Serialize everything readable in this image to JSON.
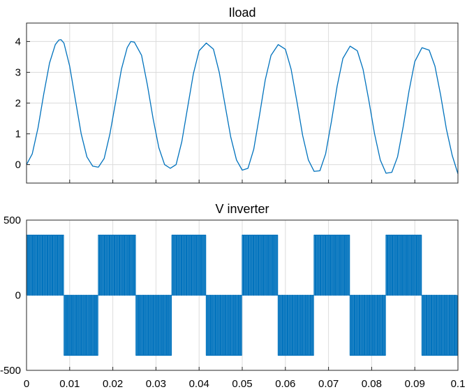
{
  "chart_data": [
    {
      "type": "line",
      "title": "Iload",
      "xlim": [
        0,
        0.1
      ],
      "ylim": [
        -0.6,
        4.6
      ],
      "yticks": [
        0,
        1,
        2,
        3,
        4
      ],
      "xticks": [
        0,
        0.01,
        0.02,
        0.03,
        0.04,
        0.05,
        0.06,
        0.07,
        0.08,
        0.09,
        0.1
      ],
      "grid": true,
      "series": [
        {
          "color": "#0072bd",
          "x": [
            0,
            0.00133,
            0.00267,
            0.004,
            0.00533,
            0.00667,
            0.0075,
            0.008,
            0.00867,
            0.01,
            0.01133,
            0.01267,
            0.014,
            0.01533,
            0.0165,
            0.01667,
            0.018,
            0.01933,
            0.02067,
            0.022,
            0.02333,
            0.02417,
            0.025,
            0.02667,
            0.028,
            0.02933,
            0.03067,
            0.032,
            0.03333,
            0.03467,
            0.036,
            0.03733,
            0.03867,
            0.04,
            0.04167,
            0.04333,
            0.04467,
            0.046,
            0.04733,
            0.04867,
            0.05,
            0.05133,
            0.05267,
            0.054,
            0.05533,
            0.05667,
            0.05833,
            0.06,
            0.06133,
            0.06267,
            0.064,
            0.06533,
            0.06667,
            0.068,
            0.06933,
            0.07067,
            0.072,
            0.07333,
            0.075,
            0.07667,
            0.078,
            0.07933,
            0.08067,
            0.082,
            0.08333,
            0.08467,
            0.086,
            0.08733,
            0.08867,
            0.09,
            0.09167,
            0.09333,
            0.09467,
            0.096,
            0.09733,
            0.09867,
            0.1
          ],
          "y": [
            0,
            0.35,
            1.2,
            2.3,
            3.3,
            3.9,
            4.05,
            4.06,
            3.95,
            3.2,
            2.1,
            1.0,
            0.25,
            -0.05,
            -0.08,
            -0.08,
            0.2,
            1.0,
            2.05,
            3.1,
            3.8,
            4.0,
            3.98,
            3.55,
            2.6,
            1.5,
            0.55,
            0.0,
            -0.12,
            0.0,
            0.75,
            1.85,
            2.95,
            3.7,
            3.95,
            3.75,
            3.0,
            1.95,
            0.9,
            0.15,
            -0.18,
            -0.12,
            0.5,
            1.6,
            2.75,
            3.55,
            3.9,
            3.75,
            3.1,
            2.05,
            0.95,
            0.15,
            -0.22,
            -0.2,
            0.35,
            1.4,
            2.55,
            3.45,
            3.85,
            3.7,
            3.1,
            2.1,
            1.0,
            0.15,
            -0.28,
            -0.25,
            0.25,
            1.25,
            2.4,
            3.35,
            3.8,
            3.72,
            3.2,
            2.25,
            1.15,
            0.3,
            -0.3
          ]
        }
      ]
    },
    {
      "type": "line",
      "title": "V inverter",
      "xlim": [
        0,
        0.1
      ],
      "ylim": [
        -500,
        500
      ],
      "yticks": [
        -500,
        0,
        500
      ],
      "ytick_labels": [
        "-500",
        "0",
        "500"
      ],
      "xticks": [
        0,
        0.01,
        0.02,
        0.03,
        0.04,
        0.05,
        0.06,
        0.07,
        0.08,
        0.09,
        0.1
      ],
      "xtick_labels": [
        "0",
        "0.01",
        "0.02",
        "0.03",
        "0.04",
        "0.05",
        "0.06",
        "0.07",
        "0.08",
        "0.09",
        "0.1"
      ],
      "grid": true,
      "series": [
        {
          "color": "#0072bd",
          "signal": "PWM, 0 / ±400 V levels, fundamental 60 Hz",
          "amplitude": 400,
          "fundamental_hz": 60,
          "pulses_per_half_cycle": 22
        }
      ]
    }
  ]
}
